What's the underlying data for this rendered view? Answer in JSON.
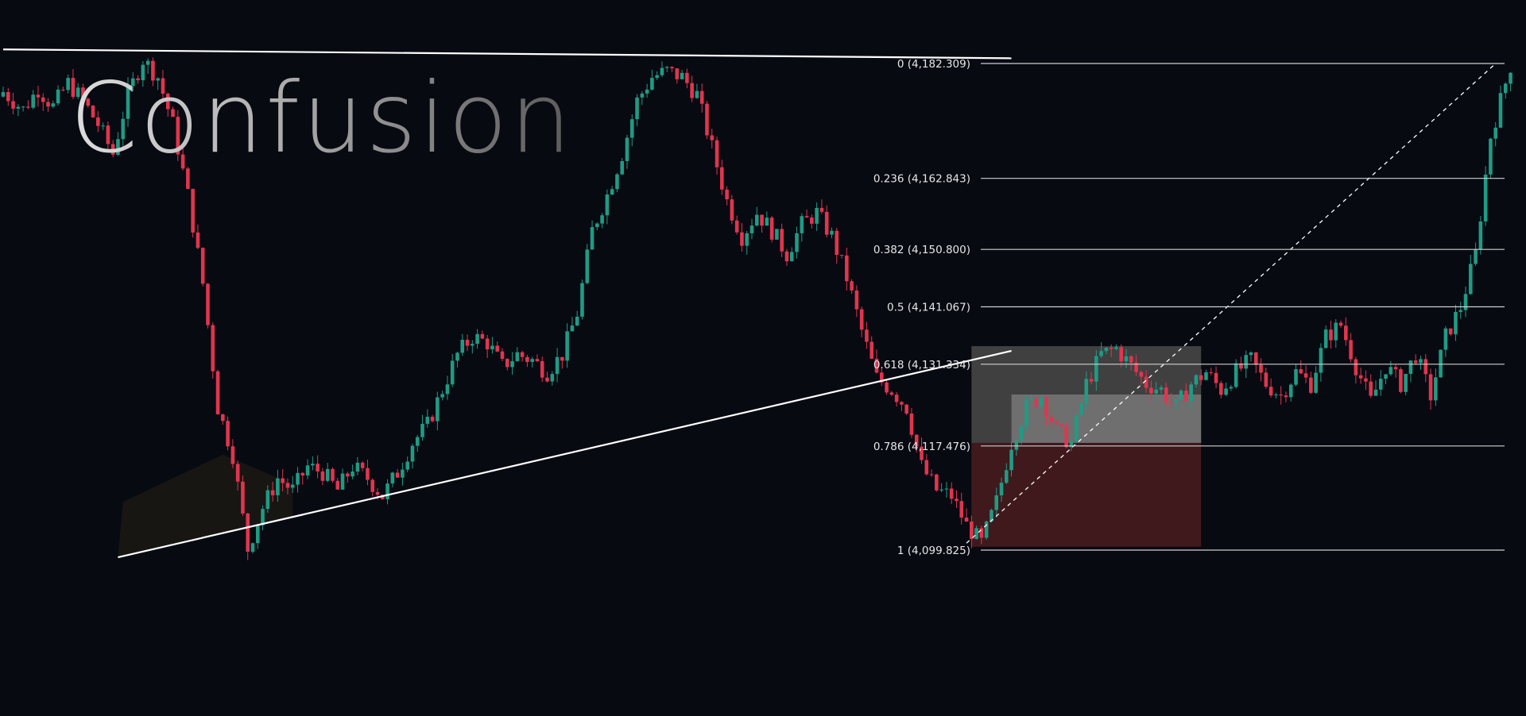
{
  "heading": "Confusion",
  "colors": {
    "background": "#080a12",
    "bullish": "#1f9b84",
    "bearish": "#e0354e",
    "lines": "#ffffff",
    "fib_lines": "#cfcfcf",
    "zone_upper": "#4a4a4a",
    "zone_inner": "#7a7a7a",
    "zone_lower": "#4a1c20"
  },
  "chart_data": {
    "type": "candlestick",
    "title": "",
    "xlabel": "",
    "ylabel": "",
    "grid": false,
    "ylim": [
      4072,
      4210
    ],
    "fib_levels": [
      {
        "ratio": "0",
        "price": "4,182.309",
        "label": "0 (4,182.309)"
      },
      {
        "ratio": "0.236",
        "price": "4,162.843",
        "label": "0.236 (4,162.843)"
      },
      {
        "ratio": "0.382",
        "price": "4,150.800",
        "label": "0.382 (4,150.800)"
      },
      {
        "ratio": "0.5",
        "price": "4,141.067",
        "label": "0.5 (4,141.067)"
      },
      {
        "ratio": "0.618",
        "price": "4,131.334",
        "label": "0.618 (4,131.334)"
      },
      {
        "ratio": "0.786",
        "price": "4,117.476",
        "label": "0.786 (4,117.476)"
      },
      {
        "ratio": "1",
        "price": "4,099.825",
        "label": "1 (4,099.825)"
      }
    ],
    "trendlines": [
      {
        "name": "resistance",
        "from": {
          "bar": 0,
          "price": 4184.7
        },
        "to": {
          "bar": 202,
          "price": 4183.2
        }
      },
      {
        "name": "support",
        "from": {
          "bar": 23,
          "price": 4098.6
        },
        "to": {
          "bar": 202,
          "price": 4133.6
        }
      }
    ],
    "position_zone": {
      "from_bar": 194,
      "to_bar": 240,
      "upper_top": 4134.4,
      "entry": 4118.0,
      "lower_bottom": 4100.4,
      "inner_top": 4126.2,
      "inner_from_bar": 202
    },
    "diagonal": {
      "from": {
        "bar": 193,
        "price": 4101.0
      },
      "to": {
        "bar": 299,
        "price": 4182.3
      }
    },
    "close_path": [
      [
        0,
        4177.5
      ],
      [
        4,
        4174.5
      ],
      [
        7,
        4178
      ],
      [
        10,
        4175
      ],
      [
        13,
        4179
      ],
      [
        16,
        4176
      ],
      [
        19,
        4172
      ],
      [
        22,
        4167
      ],
      [
        25,
        4177
      ],
      [
        28,
        4183
      ],
      [
        31,
        4180
      ],
      [
        34,
        4172
      ],
      [
        37,
        4160
      ],
      [
        40,
        4145
      ],
      [
        43,
        4124
      ],
      [
        46,
        4116
      ],
      [
        49,
        4100
      ],
      [
        52,
        4107
      ],
      [
        55,
        4112
      ],
      [
        58,
        4110
      ],
      [
        61,
        4114
      ],
      [
        64,
        4113
      ],
      [
        67,
        4110
      ],
      [
        70,
        4114
      ],
      [
        73,
        4112
      ],
      [
        76,
        4109
      ],
      [
        79,
        4113
      ],
      [
        82,
        4118
      ],
      [
        85,
        4121
      ],
      [
        88,
        4127
      ],
      [
        91,
        4133
      ],
      [
        94,
        4136
      ],
      [
        97,
        4135
      ],
      [
        100,
        4131
      ],
      [
        103,
        4133
      ],
      [
        106,
        4132
      ],
      [
        109,
        4130
      ],
      [
        112,
        4133
      ],
      [
        115,
        4140
      ],
      [
        118,
        4154
      ],
      [
        121,
        4160
      ],
      [
        124,
        4167
      ],
      [
        127,
        4176
      ],
      [
        130,
        4180
      ],
      [
        133,
        4181
      ],
      [
        136,
        4180
      ],
      [
        139,
        4177
      ],
      [
        142,
        4168
      ],
      [
        145,
        4159
      ],
      [
        148,
        4153
      ],
      [
        151,
        4157
      ],
      [
        154,
        4154
      ],
      [
        157,
        4150
      ],
      [
        160,
        4155
      ],
      [
        163,
        4157
      ],
      [
        166,
        4153
      ],
      [
        169,
        4146
      ],
      [
        172,
        4137
      ],
      [
        175,
        4129
      ],
      [
        178,
        4127
      ],
      [
        181,
        4124
      ],
      [
        184,
        4114
      ],
      [
        187,
        4110
      ],
      [
        190,
        4109
      ],
      [
        193,
        4104
      ],
      [
        196,
        4101
      ],
      [
        199,
        4108
      ],
      [
        202,
        4118
      ],
      [
        205,
        4124
      ],
      [
        208,
        4126
      ],
      [
        211,
        4120
      ],
      [
        214,
        4118
      ],
      [
        217,
        4128
      ],
      [
        220,
        4133
      ],
      [
        223,
        4134
      ],
      [
        226,
        4131
      ],
      [
        229,
        4128
      ],
      [
        232,
        4127
      ],
      [
        235,
        4124
      ],
      [
        238,
        4128
      ],
      [
        241,
        4130
      ],
      [
        244,
        4127
      ],
      [
        247,
        4130
      ],
      [
        250,
        4132
      ],
      [
        253,
        4128
      ],
      [
        256,
        4126
      ],
      [
        259,
        4130
      ],
      [
        262,
        4128
      ],
      [
        265,
        4136
      ],
      [
        268,
        4138
      ],
      [
        271,
        4131
      ],
      [
        274,
        4125
      ],
      [
        277,
        4131
      ],
      [
        280,
        4128
      ],
      [
        283,
        4133
      ],
      [
        286,
        4126
      ],
      [
        289,
        4136
      ],
      [
        292,
        4141
      ],
      [
        295,
        4150
      ],
      [
        298,
        4170
      ],
      [
        300,
        4176
      ],
      [
        302,
        4182
      ]
    ]
  }
}
